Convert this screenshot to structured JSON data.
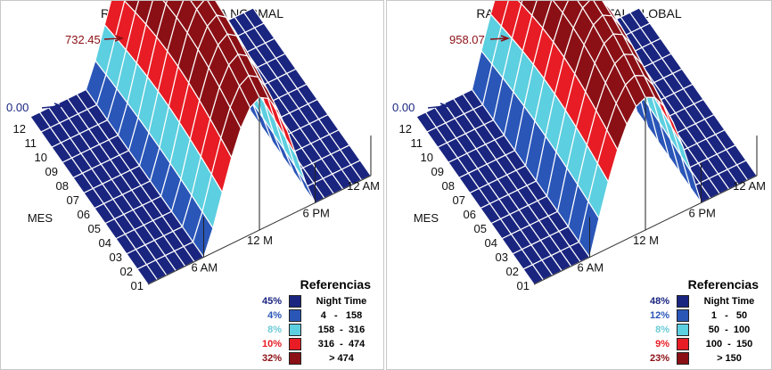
{
  "colors": {
    "night": "#1a2580",
    "band1": "#2a56b8",
    "band2": "#5ccfe0",
    "band3": "#e81c24",
    "band4": "#8b1015"
  },
  "chart_data": [
    {
      "type": "surface",
      "title": "RADIACIÓN DIRECTA NORMAL",
      "max_label": "732.45",
      "min_label": "0.00",
      "max_value": 732.45,
      "min_value": 0,
      "y_axis_label": "MES",
      "months": [
        "01",
        "02",
        "03",
        "04",
        "05",
        "06",
        "07",
        "08",
        "09",
        "10",
        "11",
        "12"
      ],
      "hour_ticks": [
        "6 AM",
        "12 M",
        "6 PM",
        "12 AM"
      ],
      "legend": {
        "title": "Referencias",
        "items": [
          {
            "pct": "45%",
            "range": "Night Time",
            "color": "#1a2580"
          },
          {
            "pct": "4%",
            "range": "4   -   158",
            "color": "#2a56b8"
          },
          {
            "pct": "8%",
            "range": "158  -  316",
            "color": "#5ccfe0"
          },
          {
            "pct": "10%",
            "range": "316  -  474",
            "color": "#e81c24"
          },
          {
            "pct": "32%",
            "range": "> 474",
            "color": "#8b1015"
          }
        ]
      }
    },
    {
      "type": "surface",
      "title": "RADIACIÓN HORIZONTAL GLOBAL",
      "max_label": "958.07",
      "min_label": "0.00",
      "max_value": 958.07,
      "min_value": 0,
      "y_axis_label": "MES",
      "months": [
        "01",
        "02",
        "03",
        "04",
        "05",
        "06",
        "07",
        "08",
        "09",
        "10",
        "11",
        "12"
      ],
      "hour_ticks": [
        "6 AM",
        "12 M",
        "6 PM",
        "12 AM"
      ],
      "legend": {
        "title": "Referencias",
        "items": [
          {
            "pct": "48%",
            "range": "Night Time",
            "color": "#1a2580"
          },
          {
            "pct": "12%",
            "range": "1   -   50",
            "color": "#2a56b8"
          },
          {
            "pct": "8%",
            "range": "50  -  100",
            "color": "#5ccfe0"
          },
          {
            "pct": "9%",
            "range": "100  -  150",
            "color": "#e81c24"
          },
          {
            "pct": "23%",
            "range": "> 150",
            "color": "#8b1015"
          }
        ]
      }
    }
  ]
}
